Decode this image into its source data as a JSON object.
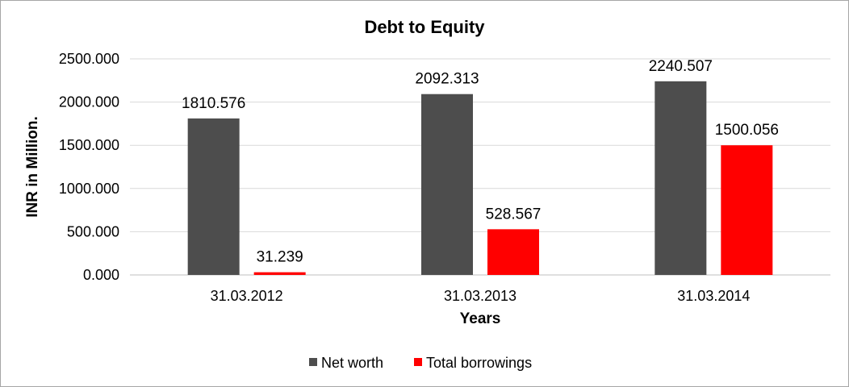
{
  "chart_data": {
    "type": "bar",
    "title": "Debt to Equity",
    "xlabel": "Years",
    "ylabel": "INR in Million.",
    "categories": [
      "31.03.2012",
      "31.03.2013",
      "31.03.2014"
    ],
    "series": [
      {
        "name": "Net worth",
        "color": "#4d4d4d",
        "values": [
          1810.576,
          2092.313,
          2240.507
        ]
      },
      {
        "name": "Total borrowings",
        "color": "#ff0000",
        "values": [
          31.239,
          528.567,
          1500.056
        ]
      }
    ],
    "data_labels": [
      [
        "1810.576",
        "2092.313",
        "2240.507"
      ],
      [
        "31.239",
        "528.567",
        "1500.056"
      ]
    ],
    "ylim": [
      0,
      2500
    ],
    "yticks": [
      "0.000",
      "500.000",
      "1000.000",
      "1500.000",
      "2000.000",
      "2500.000"
    ],
    "grid": true,
    "legend_position": "bottom"
  }
}
